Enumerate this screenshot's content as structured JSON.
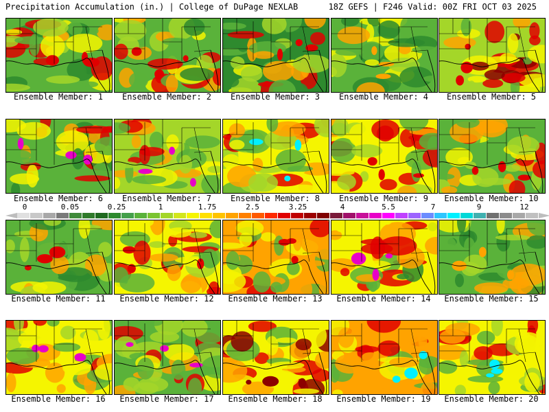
{
  "header": {
    "title": "Precipitation Accumulation (in.) | College of DuPage NEXLAB",
    "run_info": "18Z GEFS | F246 Valid: 00Z FRI OCT 03 2025"
  },
  "colorbar": {
    "tick_labels": [
      "0",
      "0.05",
      "0.25",
      "1",
      "1.75",
      "2.5",
      "3.25",
      "4",
      "5.5",
      "7",
      "9",
      "12"
    ],
    "colors": [
      "#e0e0e0",
      "#c8c8c8",
      "#a8a8a8",
      "#7a7a7a",
      "#3f8a3a",
      "#2f7a2a",
      "#1f6a1f",
      "#2e8a2e",
      "#44a04a",
      "#5ab23a",
      "#7bc431",
      "#a4d629",
      "#d2e61c",
      "#f5f500",
      "#ffe000",
      "#ffc400",
      "#ffa300",
      "#ff8000",
      "#ff5a00",
      "#ff2a00",
      "#e00000",
      "#c00000",
      "#9c0000",
      "#800000",
      "#7a1a3a",
      "#a0106a",
      "#c8109a",
      "#e800c8",
      "#ff00ff",
      "#c040ff",
      "#9d64ff",
      "#6c8cff",
      "#2ec6ff",
      "#00f0ff",
      "#00d8d8",
      "#40b0b0",
      "#707070",
      "#8c8c8c",
      "#a8a8a8",
      "#c0c0c0"
    ]
  },
  "map_colors": {
    "dark_green": "#2e8a2e",
    "green": "#5ab23a",
    "light_green": "#a4d629",
    "yellow": "#f5f500",
    "orange": "#ffa300",
    "red": "#e00000",
    "dark_red": "#8c0000",
    "magenta": "#e800c8",
    "cyan": "#00f0ff",
    "gray": "#8c8c8c"
  },
  "members": [
    {
      "label": "Ensemble Member: 1",
      "palette": [
        "#5ab23a",
        "#2e8a2e",
        "#a4d629",
        "#f5f500",
        "#ffa300",
        "#e00000"
      ],
      "accent": "red"
    },
    {
      "label": "Ensemble Member: 2",
      "palette": [
        "#5ab23a",
        "#2e8a2e",
        "#a4d629",
        "#f5f500",
        "#ffa300",
        "#e00000"
      ],
      "accent": "red"
    },
    {
      "label": "Ensemble Member: 3",
      "palette": [
        "#2e8a2e",
        "#5ab23a",
        "#a4d629",
        "#f5f500",
        "#ffa300",
        "#e00000"
      ],
      "accent": "red"
    },
    {
      "label": "Ensemble Member: 4",
      "palette": [
        "#5ab23a",
        "#2e8a2e",
        "#a4d629",
        "#f5f500",
        "#ffa300"
      ],
      "accent": "orange"
    },
    {
      "label": "Ensemble Member: 5",
      "palette": [
        "#a4d629",
        "#5ab23a",
        "#f5f500",
        "#ffa300",
        "#e00000",
        "#8c0000"
      ],
      "accent": "red"
    },
    {
      "label": "Ensemble Member: 6",
      "palette": [
        "#5ab23a",
        "#f5f500",
        "#ffa300",
        "#e00000",
        "#2e8a2e"
      ],
      "accent": "magenta"
    },
    {
      "label": "Ensemble Member: 7",
      "palette": [
        "#a4d629",
        "#f5f500",
        "#ffa300",
        "#e00000",
        "#5ab23a"
      ],
      "accent": "magenta"
    },
    {
      "label": "Ensemble Member: 8",
      "palette": [
        "#f5f500",
        "#ffa300",
        "#e00000",
        "#5ab23a",
        "#a4d629"
      ],
      "accent": "cyan"
    },
    {
      "label": "Ensemble Member: 9",
      "palette": [
        "#f5f500",
        "#ffa300",
        "#5ab23a",
        "#e00000",
        "#a4d629"
      ],
      "accent": "red"
    },
    {
      "label": "Ensemble Member: 10",
      "palette": [
        "#5ab23a",
        "#f5f500",
        "#ffa300",
        "#e00000",
        "#a4d629"
      ],
      "accent": "red"
    },
    {
      "label": "Ensemble Member: 11",
      "palette": [
        "#5ab23a",
        "#a4d629",
        "#f5f500",
        "#ffa300",
        "#2e8a2e"
      ],
      "accent": "red"
    },
    {
      "label": "Ensemble Member: 12",
      "palette": [
        "#f5f500",
        "#ffa300",
        "#e00000",
        "#5ab23a",
        "#a4d629"
      ],
      "accent": "red"
    },
    {
      "label": "Ensemble Member: 13",
      "palette": [
        "#ffa300",
        "#f5f500",
        "#e00000",
        "#5ab23a"
      ],
      "accent": "red"
    },
    {
      "label": "Ensemble Member: 14",
      "palette": [
        "#f5f500",
        "#ffa300",
        "#e00000",
        "#5ab23a",
        "#2e8a2e"
      ],
      "accent": "magenta"
    },
    {
      "label": "Ensemble Member: 15",
      "palette": [
        "#5ab23a",
        "#2e8a2e",
        "#a4d629",
        "#f5f500",
        "#ffa300"
      ],
      "accent": "orange"
    },
    {
      "label": "Ensemble Member: 16",
      "palette": [
        "#f5f500",
        "#ffa300",
        "#e00000",
        "#5ab23a",
        "#a4d629"
      ],
      "accent": "magenta"
    },
    {
      "label": "Ensemble Member: 17",
      "palette": [
        "#5ab23a",
        "#a4d629",
        "#f5f500",
        "#ffa300",
        "#e00000"
      ],
      "accent": "magenta"
    },
    {
      "label": "Ensemble Member: 18",
      "palette": [
        "#f5f500",
        "#ffa300",
        "#e00000",
        "#8c0000",
        "#5ab23a"
      ],
      "accent": "dark_red"
    },
    {
      "label": "Ensemble Member: 19",
      "palette": [
        "#ffa300",
        "#e00000",
        "#f5f500",
        "#5ab23a"
      ],
      "accent": "cyan"
    },
    {
      "label": "Ensemble Member: 20",
      "palette": [
        "#f5f500",
        "#ffa300",
        "#e00000",
        "#5ab23a",
        "#a4d629"
      ],
      "accent": "cyan"
    }
  ]
}
